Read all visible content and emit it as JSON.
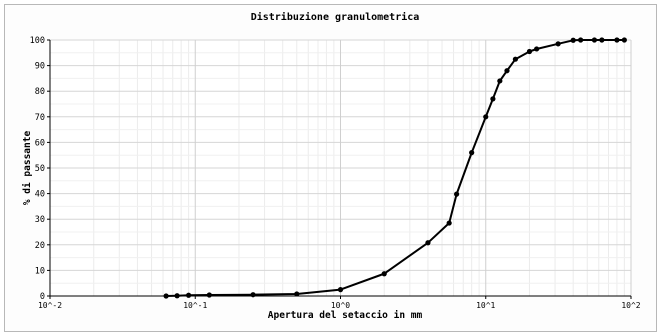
{
  "chart_data": {
    "type": "line",
    "title": "Distribuzione granulometrica",
    "xlabel": "Apertura del setaccio in mm",
    "ylabel": "% di passante",
    "xscale": "log",
    "xlim": [
      0.01,
      100
    ],
    "ylim": [
      0,
      100
    ],
    "grid": true,
    "x_ticks": [
      {
        "value": 0.01,
        "label": "10^-2"
      },
      {
        "value": 0.1,
        "label": "10^-1"
      },
      {
        "value": 1,
        "label": "10^0"
      },
      {
        "value": 10,
        "label": "10^1"
      },
      {
        "value": 100,
        "label": "10^2"
      }
    ],
    "y_ticks": [
      0,
      10,
      20,
      30,
      40,
      50,
      60,
      70,
      80,
      90,
      100
    ],
    "series": [
      {
        "x": [
          0.063,
          0.075,
          0.09,
          0.125,
          0.25,
          0.5,
          1,
          2,
          4,
          5.6,
          6.3,
          8,
          10,
          11.2,
          12.5,
          14,
          16,
          20,
          22.4,
          31.5,
          40,
          45,
          56,
          63,
          80,
          90
        ],
        "y": [
          0.0,
          0.1,
          0.3,
          0.4,
          0.5,
          0.8,
          2.5,
          8.7,
          20.8,
          28.5,
          39.8,
          56.0,
          70.0,
          77.0,
          84.0,
          88.0,
          92.5,
          95.5,
          96.5,
          98.5,
          99.9,
          100,
          100,
          100,
          100,
          100
        ],
        "color": "#000000"
      }
    ]
  }
}
